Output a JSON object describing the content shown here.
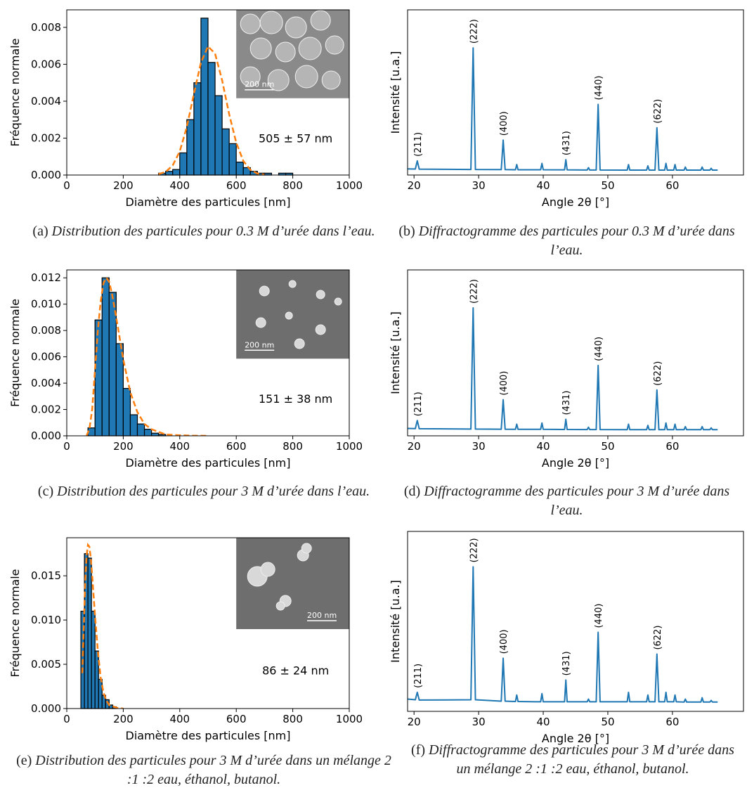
{
  "chart_data": [
    {
      "type": "histogram",
      "color": "#1f77b4",
      "bins": [
        325,
        350,
        375,
        400,
        425,
        450,
        475,
        500,
        525,
        550,
        575,
        600,
        625,
        650,
        675,
        700,
        725,
        750,
        775,
        800
      ],
      "values": [
        0.0001,
        0.0002,
        0.0003,
        0.0012,
        0.003,
        0.005,
        0.0085,
        0.0061,
        0.0043,
        0.0025,
        0.0017,
        0.0007,
        0.0004,
        0.0002,
        0.0001,
        0.0001,
        0.0,
        0.0001,
        0.0001
      ],
      "fit": {
        "color": "#ff7f0e",
        "x": [
          325,
          350,
          375,
          400,
          425,
          450,
          475,
          500,
          525,
          550,
          575,
          600,
          625,
          650,
          675,
          700
        ],
        "values": [
          5e-05,
          0.00017,
          0.00052,
          0.00128,
          0.00261,
          0.00439,
          0.0061,
          0.00697,
          0.00658,
          0.00513,
          0.00329,
          0.00175,
          0.00076,
          0.00028,
          8e-05,
          2e-05
        ]
      },
      "xlim": [
        0,
        1000
      ],
      "xticks": [
        0,
        200,
        400,
        600,
        800,
        1000
      ],
      "ylim": [
        0,
        0.00895
      ],
      "yticks": [
        {
          "value": 0,
          "label": "0.000"
        },
        {
          "value": 0.002,
          "label": "0.002"
        },
        {
          "value": 0.004,
          "label": "0.004"
        },
        {
          "value": 0.006,
          "label": "0.006"
        },
        {
          "value": 0.008,
          "label": "0.008"
        }
      ],
      "xlabel": "Diamètre des particules [nm]",
      "ylabel": "Fréquence normale",
      "annotation": "505 ± 57 nm",
      "inset_scale_label": "200 nm",
      "caption": {
        "label": "(a)",
        "text": "Distribution des particules pour 0.3 M d’urée dans l’eau."
      }
    },
    {
      "type": "line",
      "color": "#1f77b4",
      "x": [
        19,
        20.2,
        20.5,
        20.8,
        28.8,
        29.15,
        29.5,
        33.5,
        33.8,
        34.1,
        35.7,
        35.9,
        36.1,
        39.6,
        39.8,
        40.0,
        43.3,
        43.5,
        43.7,
        46.8,
        47.0,
        47.2,
        48.2,
        48.5,
        48.8,
        53.0,
        53.2,
        53.4,
        56.0,
        56.2,
        56.4,
        57.3,
        57.6,
        57.9,
        58.8,
        59.0,
        59.2,
        60.2,
        60.4,
        60.6,
        61.8,
        62.0,
        62.2,
        64.4,
        64.6,
        64.8,
        65.8,
        66.0,
        66.2,
        67
      ],
      "values": [
        1.5,
        1.4,
        8,
        1.3,
        1.0,
        100,
        1.0,
        0.9,
        25,
        0.9,
        0.8,
        5,
        0.8,
        0.8,
        6,
        0.8,
        0.7,
        9,
        0.7,
        0.6,
        2.5,
        0.6,
        0.6,
        54,
        0.6,
        0.5,
        5,
        0.5,
        0.5,
        4,
        0.5,
        0.5,
        35,
        0.5,
        0.5,
        6,
        0.5,
        0.5,
        5,
        0.5,
        0.5,
        3,
        0.5,
        0.5,
        3,
        0.5,
        0.5,
        2,
        0.5,
        0.5
      ],
      "peak_labels": [
        {
          "text": "(211)",
          "x": 20.5,
          "y": 8
        },
        {
          "text": "(222)",
          "x": 29.15,
          "y": 100
        },
        {
          "text": "(400)",
          "x": 33.8,
          "y": 25
        },
        {
          "text": "(431)",
          "x": 43.5,
          "y": 9
        },
        {
          "text": "(440)",
          "x": 48.5,
          "y": 54
        },
        {
          "text": "(622)",
          "x": 57.6,
          "y": 35
        }
      ],
      "xlim": [
        19,
        71
      ],
      "xticks": [
        20,
        30,
        40,
        50,
        60
      ],
      "ylim": [
        -3.5,
        131
      ],
      "xlabel": "Angle 2θ [°]",
      "ylabel": "Intensité [u.a.]",
      "caption": {
        "label": "(b)",
        "text": "Diffractogramme des particules pour 0.3 M d’urée dans l’eau."
      }
    },
    {
      "type": "histogram",
      "color": "#1f77b4",
      "bins": [
        75,
        100,
        125,
        150,
        175,
        200,
        225,
        250,
        275,
        300,
        325,
        350
      ],
      "values": [
        0.0006,
        0.0088,
        0.012,
        0.0109,
        0.007,
        0.0036,
        0.0016,
        0.0009,
        0.0005,
        0.0002,
        0.0001
      ],
      "fit": {
        "color": "#ff7f0e",
        "x": [
          70,
          80,
          90,
          100,
          110,
          120,
          130,
          140,
          150,
          160,
          175,
          200,
          225,
          250,
          275,
          300,
          350,
          400,
          450,
          500
        ],
        "values": [
          0.0,
          0.0005,
          0.002,
          0.005,
          0.008,
          0.0102,
          0.0116,
          0.012,
          0.0117,
          0.0108,
          0.009,
          0.0058,
          0.0033,
          0.0018,
          0.0009,
          0.0005,
          0.0001,
          4e-05,
          1e-05,
          0.0
        ]
      },
      "xlim": [
        0,
        1000
      ],
      "xticks": [
        0,
        200,
        400,
        600,
        800,
        1000
      ],
      "ylim": [
        0,
        0.0126
      ],
      "yticks": [
        {
          "value": 0,
          "label": "0.000"
        },
        {
          "value": 0.002,
          "label": "0.002"
        },
        {
          "value": 0.004,
          "label": "0.004"
        },
        {
          "value": 0.006,
          "label": "0.006"
        },
        {
          "value": 0.008,
          "label": "0.008"
        },
        {
          "value": 0.01,
          "label": "0.010"
        },
        {
          "value": 0.012,
          "label": "0.012"
        }
      ],
      "xlabel": "Diamètre des particules [nm]",
      "ylabel": "Fréquence normale",
      "annotation": "151 ± 38 nm",
      "inset_scale_label": "200 nm",
      "caption": {
        "label": "(c)",
        "text": "Distribution des particules pour 3 M d’urée dans l’eau."
      }
    },
    {
      "type": "line",
      "color": "#1f77b4",
      "x": [
        19,
        20.2,
        20.5,
        20.8,
        28.8,
        29.15,
        29.5,
        33.5,
        33.8,
        34.1,
        35.7,
        35.9,
        36.1,
        39.6,
        39.8,
        40.0,
        43.3,
        43.5,
        43.7,
        46.8,
        47.0,
        47.2,
        48.2,
        48.5,
        48.8,
        53.0,
        53.2,
        53.4,
        56.0,
        56.2,
        56.4,
        57.3,
        57.6,
        57.9,
        58.8,
        59.0,
        59.2,
        60.2,
        60.4,
        60.6,
        61.8,
        62.0,
        62.2,
        64.4,
        64.6,
        64.8,
        65.8,
        66.0,
        66.2,
        67
      ],
      "values": [
        1.5,
        1.4,
        8,
        1.3,
        1.0,
        100,
        1.0,
        0.9,
        25,
        0.9,
        0.8,
        5,
        0.8,
        0.8,
        6,
        0.8,
        0.7,
        9,
        0.7,
        0.6,
        2.5,
        0.6,
        0.6,
        53,
        0.6,
        0.5,
        5,
        0.5,
        0.5,
        4,
        0.5,
        0.5,
        33,
        0.5,
        0.5,
        6,
        0.5,
        0.5,
        5,
        0.5,
        0.5,
        3,
        0.5,
        0.5,
        3,
        0.5,
        0.5,
        2,
        0.5,
        0.5
      ],
      "peak_labels": [
        {
          "text": "(211)",
          "x": 20.5,
          "y": 8
        },
        {
          "text": "(222)",
          "x": 29.15,
          "y": 100
        },
        {
          "text": "(400)",
          "x": 33.8,
          "y": 25
        },
        {
          "text": "(431)",
          "x": 43.5,
          "y": 9
        },
        {
          "text": "(440)",
          "x": 48.5,
          "y": 53
        },
        {
          "text": "(622)",
          "x": 57.6,
          "y": 33
        }
      ],
      "xlim": [
        19,
        71
      ],
      "xticks": [
        20,
        30,
        40,
        50,
        60
      ],
      "ylim": [
        -4.5,
        131
      ],
      "xlabel": "Angle 2θ [°]",
      "ylabel": "Intensité [u.a.]",
      "caption": {
        "label": "(d)",
        "text": "Diffractogramme des particules pour 3 M d’urée dans l’eau."
      }
    },
    {
      "type": "histogram",
      "color": "#1f77b4",
      "bins": [
        50,
        62.5,
        75,
        87.5,
        100,
        112.5,
        125,
        137.5,
        150,
        162.5,
        175
      ],
      "values": [
        0.011,
        0.0175,
        0.017,
        0.011,
        0.0065,
        0.0033,
        0.0015,
        0.001,
        0.0004,
        0.0002
      ],
      "fit": {
        "color": "#ff7f0e",
        "x": [
          55,
          60,
          65,
          70,
          75,
          80,
          85,
          90,
          100,
          110,
          120,
          130,
          140,
          150,
          175,
          200
        ],
        "values": [
          0.004,
          0.009,
          0.014,
          0.0172,
          0.0185,
          0.0183,
          0.017,
          0.015,
          0.0105,
          0.0065,
          0.0035,
          0.0018,
          0.0009,
          0.0004,
          0.0001,
          0.0
        ]
      },
      "xlim": [
        0,
        1000
      ],
      "xticks": [
        0,
        200,
        400,
        600,
        800,
        1000
      ],
      "ylim": [
        0,
        0.0193
      ],
      "yticks": [
        {
          "value": 0,
          "label": "0.000"
        },
        {
          "value": 0.005,
          "label": "0.005"
        },
        {
          "value": 0.01,
          "label": "0.010"
        },
        {
          "value": 0.015,
          "label": "0.015"
        }
      ],
      "xlabel": "Diamètre des particules [nm]",
      "ylabel": "Fréquence normale",
      "annotation": "86 ± 24 nm",
      "inset_scale_label": "200 nm",
      "caption": {
        "label": "(e)",
        "text": "Distribution des particules pour 3 M d’urée dans un mélange 2 :1 :2 eau, éthanol, butanol."
      }
    },
    {
      "type": "line",
      "color": "#1f77b4",
      "x": [
        19,
        20.2,
        20.5,
        20.8,
        28.8,
        29.15,
        29.5,
        33.5,
        33.8,
        34.1,
        35.7,
        35.9,
        36.1,
        39.6,
        39.8,
        40.0,
        43.3,
        43.5,
        43.7,
        46.8,
        47.0,
        47.2,
        48.2,
        48.5,
        48.8,
        53.0,
        53.2,
        53.4,
        56.0,
        56.2,
        56.4,
        57.3,
        57.6,
        57.9,
        58.8,
        59.0,
        59.2,
        60.2,
        60.4,
        60.6,
        61.8,
        62.0,
        62.2,
        64.4,
        64.6,
        64.8,
        65.8,
        66.0,
        66.2,
        67
      ],
      "values": [
        3,
        2.5,
        8,
        2.3,
        2.5,
        100,
        2.5,
        1.5,
        33,
        1.5,
        1.2,
        6,
        1.2,
        1,
        7,
        1,
        1,
        17,
        1,
        1,
        3,
        1,
        1,
        52,
        1,
        1,
        8,
        1,
        1,
        6,
        1,
        1,
        36,
        1,
        1,
        8,
        1,
        1,
        6,
        1,
        0.8,
        3,
        0.8,
        0.8,
        4,
        0.8,
        0.8,
        2,
        0.8,
        0.8
      ],
      "peak_labels": [
        {
          "text": "(211)",
          "x": 20.5,
          "y": 8
        },
        {
          "text": "(222)",
          "x": 29.15,
          "y": 100
        },
        {
          "text": "(400)",
          "x": 33.8,
          "y": 33
        },
        {
          "text": "(431)",
          "x": 43.5,
          "y": 17
        },
        {
          "text": "(440)",
          "x": 48.5,
          "y": 52
        },
        {
          "text": "(622)",
          "x": 57.6,
          "y": 36
        }
      ],
      "xlim": [
        19,
        71
      ],
      "xticks": [
        20,
        30,
        40,
        50,
        60
      ],
      "ylim": [
        -6,
        126
      ],
      "xlabel": "Angle 2θ [°]",
      "ylabel": "Intensité [u.a.]",
      "caption": {
        "label": "(f)",
        "text": "Diffractogramme des particules pour 3 M d’urée dans un mélange 2 :1 :2 eau, éthanol, butanol."
      }
    }
  ]
}
